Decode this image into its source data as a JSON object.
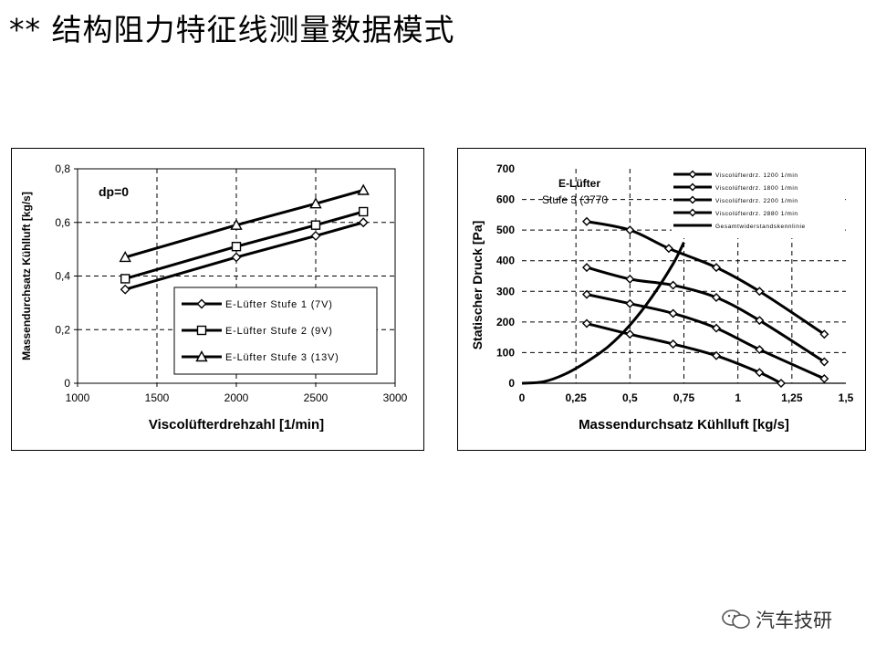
{
  "slide": {
    "title": "** 结构阻力特征线测量数据模式",
    "watermark": "汽车技研"
  },
  "chart_data": [
    {
      "type": "line",
      "annotation": "dp=0",
      "xlabel": "Viscolüfterdrehzahl [1/min]",
      "ylabel": "Massendurchsatz Kühlluft [kg/s]",
      "xlim": [
        1000,
        3000
      ],
      "ylim": [
        0,
        0.8
      ],
      "xticks": [
        "1000",
        "1500",
        "2000",
        "2500",
        "3000"
      ],
      "yticks": [
        "0",
        "0,2",
        "0,4",
        "0,6",
        "0,8"
      ],
      "grid": true,
      "legend": "bottom-right",
      "series": [
        {
          "name": "E-Lüfter Stufe 1 (7V)",
          "marker": "diamond",
          "x": [
            1300,
            2000,
            2500,
            2800
          ],
          "y": [
            0.35,
            0.47,
            0.55,
            0.6
          ]
        },
        {
          "name": "E-Lüfter Stufe 2 (9V)",
          "marker": "square",
          "x": [
            1300,
            2000,
            2500,
            2800
          ],
          "y": [
            0.39,
            0.51,
            0.59,
            0.64
          ]
        },
        {
          "name": "E-Lüfter Stufe 3 (13V)",
          "marker": "triangle",
          "x": [
            1300,
            2000,
            2500,
            2800
          ],
          "y": [
            0.47,
            0.59,
            0.67,
            0.72
          ]
        }
      ]
    },
    {
      "type": "line",
      "annotation": "E-Lüfter Stufe 3 (3770",
      "xlabel": "Massendurchsatz Kühlluft [kg/s]",
      "ylabel": "Statischer Druck [Pa]",
      "xlim": [
        0,
        1.5
      ],
      "ylim": [
        0,
        700
      ],
      "xticks": [
        "0",
        "0,25",
        "0,5",
        "0,75",
        "1",
        "1,25",
        "1,5"
      ],
      "yticks": [
        "0",
        "100",
        "200",
        "300",
        "400",
        "500",
        "600",
        "700"
      ],
      "grid": true,
      "legend": "top-right",
      "series": [
        {
          "name": "Viscolüfterdrz. 1200 1/min",
          "marker": "diamond",
          "x": [
            0.3,
            0.5,
            0.7,
            0.9,
            1.1,
            1.2
          ],
          "y": [
            195,
            160,
            128,
            90,
            35,
            0
          ]
        },
        {
          "name": "Viscolüfterdrz. 1800 1/min",
          "marker": "diamond",
          "x": [
            0.3,
            0.5,
            0.7,
            0.9,
            1.1,
            1.4
          ],
          "y": [
            290,
            260,
            228,
            180,
            110,
            15
          ]
        },
        {
          "name": "Viscolüfterdrz. 2200 1/min",
          "marker": "diamond",
          "x": [
            0.3,
            0.5,
            0.7,
            0.9,
            1.1,
            1.4
          ],
          "y": [
            378,
            340,
            320,
            280,
            205,
            70
          ]
        },
        {
          "name": "Viscolüfterdrz. 2880 1/min",
          "marker": "diamond",
          "x": [
            0.3,
            0.5,
            0.68,
            0.9,
            1.1,
            1.4
          ],
          "y": [
            528,
            500,
            440,
            378,
            300,
            160
          ]
        },
        {
          "name": "Gesamtwiderstandskennlinie",
          "marker": "none",
          "x": [
            0,
            0.1,
            0.2,
            0.3,
            0.4,
            0.5,
            0.6,
            0.7,
            0.75
          ],
          "y": [
            0,
            5,
            30,
            70,
            120,
            190,
            280,
            390,
            460
          ]
        }
      ]
    }
  ]
}
